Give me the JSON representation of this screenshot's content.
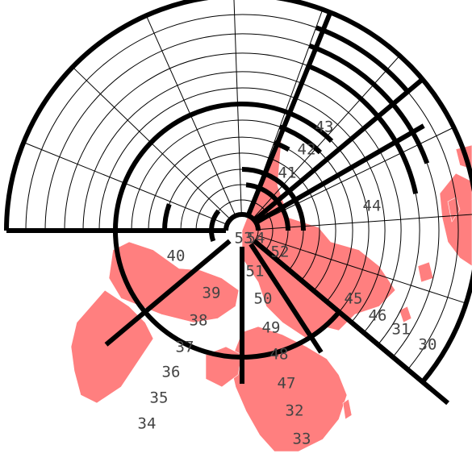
{
  "map": {
    "type": "polar-zone-map",
    "colors": {
      "land": "#ff7f7f",
      "background": "#ffffff",
      "boundary": "#000000"
    },
    "zone_labels": [
      {
        "id": "z30",
        "text": "30"
      },
      {
        "id": "z31",
        "text": "31"
      },
      {
        "id": "z32",
        "text": "32"
      },
      {
        "id": "z33",
        "text": "33"
      },
      {
        "id": "z34",
        "text": "34"
      },
      {
        "id": "z35",
        "text": "35"
      },
      {
        "id": "z36",
        "text": "36"
      },
      {
        "id": "z37",
        "text": "37"
      },
      {
        "id": "z38",
        "text": "38"
      },
      {
        "id": "z39",
        "text": "39"
      },
      {
        "id": "z40",
        "text": "40"
      },
      {
        "id": "z41",
        "text": "41"
      },
      {
        "id": "z42",
        "text": "42"
      },
      {
        "id": "z43",
        "text": "43"
      },
      {
        "id": "z44",
        "text": "44"
      },
      {
        "id": "z45",
        "text": "45"
      },
      {
        "id": "z46",
        "text": "46"
      },
      {
        "id": "z47",
        "text": "47"
      },
      {
        "id": "z48",
        "text": "48"
      },
      {
        "id": "z49",
        "text": "49"
      },
      {
        "id": "z50",
        "text": "50"
      },
      {
        "id": "z51",
        "text": "51"
      },
      {
        "id": "z52",
        "text": "52"
      },
      {
        "id": "z53",
        "text": "53"
      },
      {
        "id": "z54",
        "text": "54"
      }
    ]
  }
}
